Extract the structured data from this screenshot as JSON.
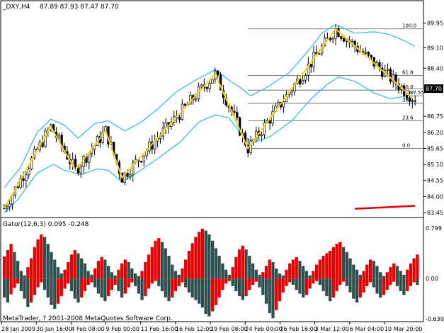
{
  "chart_header": {
    "symbol_timeframe": "_DXY,H4",
    "ohlc": "87.89 87.93 87.47 87.70"
  },
  "sub_header": {
    "indicator": "Gator(12,6,3) 0.095 -0.248"
  },
  "copyright": "MetaTrader, ? 2001-2008 MetaQuotes Software Corp.",
  "colors": {
    "background": "#ffffff",
    "candle": "#000000",
    "bollinger": "#3cbfd8",
    "zigzag": "#f2d21c",
    "fib_level": "#555555",
    "gator_up": "#e60000",
    "gator_down": "#2f4f4f",
    "signal": "#e60000",
    "price_tag_bg": "#000000",
    "price_tag_fg": "#ffffff"
  },
  "chart_data": [
    {
      "type": "candlestick",
      "title": "",
      "price_axis_labels": [
        "89.95",
        "89.10",
        "88.40",
        "87.55",
        "86.75",
        "86.20",
        "85.65",
        "85.10",
        "84.55",
        "84.00",
        "83.45"
      ],
      "current_price_label": "87.70",
      "time_axis_labels": [
        "28 Jan 2009",
        "30 Jan 16:00",
        "4 Feb 08:00",
        "9 Feb 00:00",
        "11 Feb 16:00",
        "16 Feb 12:00",
        "19 Feb 08:00",
        "24 Feb 00:00",
        "26 Feb 16:00",
        "3 Mar 12:00",
        "6 Mar 04:00",
        "10 Mar 20:00"
      ],
      "ylim": [
        83.45,
        90.4
      ],
      "zigzag": [
        {
          "bar": 0,
          "price": 83.6
        },
        {
          "bar": 17,
          "price": 86.4
        },
        {
          "bar": 26,
          "price": 84.9
        },
        {
          "bar": 37,
          "price": 86.25
        },
        {
          "bar": 43,
          "price": 84.65
        },
        {
          "bar": 77,
          "price": 88.2
        },
        {
          "bar": 89,
          "price": 85.65
        },
        {
          "bar": 121,
          "price": 89.75
        },
        {
          "bar": 149,
          "price": 87.4
        }
      ],
      "fibonacci_levels": [
        {
          "label": "100.0",
          "price": 89.75
        },
        {
          "label": "61.8",
          "price": 88.15
        },
        {
          "label": "50.0",
          "price": 87.65
        },
        {
          "label": "38.2",
          "price": 87.2
        },
        {
          "label": "23.6",
          "price": 86.6
        },
        {
          "label": "0.0",
          "price": 85.65
        }
      ],
      "fibo_price_tag": "87.55",
      "bollinger_upper": [
        [
          0,
          84.3
        ],
        [
          6,
          85.0
        ],
        [
          12,
          86.2
        ],
        [
          17,
          86.65
        ],
        [
          22,
          86.45
        ],
        [
          27,
          86.0
        ],
        [
          33,
          86.5
        ],
        [
          38,
          86.6
        ],
        [
          44,
          86.25
        ],
        [
          50,
          86.55
        ],
        [
          56,
          87.0
        ],
        [
          63,
          87.6
        ],
        [
          70,
          88.0
        ],
        [
          77,
          88.35
        ],
        [
          82,
          88.0
        ],
        [
          86,
          87.75
        ],
        [
          90,
          87.45
        ],
        [
          96,
          87.75
        ],
        [
          104,
          88.25
        ],
        [
          111,
          89.0
        ],
        [
          116,
          89.6
        ],
        [
          121,
          89.9
        ],
        [
          128,
          89.6
        ],
        [
          135,
          89.65
        ],
        [
          141,
          89.55
        ],
        [
          147,
          89.3
        ],
        [
          150,
          89.15
        ]
      ],
      "bollinger_lower": [
        [
          0,
          83.45
        ],
        [
          5,
          83.9
        ],
        [
          12,
          84.8
        ],
        [
          18,
          85.1
        ],
        [
          22,
          84.9
        ],
        [
          28,
          84.75
        ],
        [
          34,
          84.95
        ],
        [
          38,
          84.9
        ],
        [
          43,
          84.5
        ],
        [
          49,
          84.85
        ],
        [
          56,
          85.3
        ],
        [
          64,
          85.85
        ],
        [
          71,
          86.55
        ],
        [
          77,
          86.8
        ],
        [
          82,
          86.7
        ],
        [
          87,
          86.1
        ],
        [
          91,
          85.85
        ],
        [
          97,
          86.05
        ],
        [
          105,
          86.6
        ],
        [
          112,
          87.35
        ],
        [
          118,
          87.85
        ],
        [
          122,
          88.1
        ],
        [
          128,
          87.95
        ],
        [
          135,
          87.55
        ],
        [
          141,
          87.35
        ],
        [
          147,
          87.45
        ],
        [
          150,
          87.6
        ]
      ],
      "gator_upper": [
        0.35,
        0.45,
        0.55,
        0.42,
        0.28,
        0.12,
        0.05,
        0.18,
        0.32,
        0.5,
        0.62,
        0.7,
        0.66,
        0.55,
        0.42,
        0.3,
        0.18,
        0.08,
        0.14,
        0.26,
        0.38,
        0.45,
        0.4,
        0.32,
        0.24,
        0.12,
        0.06,
        0.16,
        0.28,
        0.34,
        0.3,
        0.2,
        0.1,
        0.05,
        0.14,
        0.24,
        0.3,
        0.26,
        0.16,
        0.08,
        0.04,
        0.12,
        0.26,
        0.38,
        0.5,
        0.6,
        0.64,
        0.58,
        0.48,
        0.36,
        0.22,
        0.12,
        0.06,
        0.16,
        0.3,
        0.44,
        0.56,
        0.66,
        0.74,
        0.79,
        0.76,
        0.7,
        0.6,
        0.48,
        0.36,
        0.24,
        0.14,
        0.06,
        0.18,
        0.34,
        0.46,
        0.52,
        0.46,
        0.36,
        0.24,
        0.14,
        0.06,
        0.1,
        0.2,
        0.3,
        0.26,
        0.16,
        0.08,
        0.05,
        0.14,
        0.24,
        0.3,
        0.34,
        0.28,
        0.2,
        0.12,
        0.05,
        0.12,
        0.22,
        0.3,
        0.36,
        0.4,
        0.44,
        0.5,
        0.55,
        0.58,
        0.5,
        0.42,
        0.32,
        0.22,
        0.14,
        0.06,
        0.12,
        0.22,
        0.3,
        0.28,
        0.2,
        0.1,
        0.04,
        0.1,
        0.18,
        0.24,
        0.2,
        0.12,
        0.06,
        0.14,
        0.24,
        0.32,
        0.38
      ],
      "gator_lower": [
        -0.3,
        -0.38,
        -0.25,
        -0.15,
        -0.08,
        -0.2,
        -0.32,
        -0.45,
        -0.38,
        -0.26,
        -0.14,
        -0.06,
        -0.18,
        -0.3,
        -0.42,
        -0.48,
        -0.4,
        -0.28,
        -0.16,
        -0.08,
        -0.2,
        -0.32,
        -0.38,
        -0.3,
        -0.2,
        -0.1,
        -0.06,
        -0.14,
        -0.24,
        -0.3,
        -0.36,
        -0.28,
        -0.18,
        -0.1,
        -0.2,
        -0.3,
        -0.24,
        -0.14,
        -0.06,
        -0.12,
        -0.24,
        -0.34,
        -0.28,
        -0.16,
        -0.08,
        -0.04,
        -0.12,
        -0.2,
        -0.3,
        -0.36,
        -0.3,
        -0.2,
        -0.12,
        -0.06,
        -0.14,
        -0.22,
        -0.3,
        -0.34,
        -0.4,
        -0.46,
        -0.56,
        -0.6,
        -0.52,
        -0.42,
        -0.3,
        -0.18,
        -0.08,
        -0.04,
        -0.12,
        -0.2,
        -0.28,
        -0.34,
        -0.28,
        -0.18,
        -0.1,
        -0.05,
        -0.14,
        -0.26,
        -0.4,
        -0.55,
        -0.63,
        -0.5,
        -0.36,
        -0.22,
        -0.12,
        -0.06,
        -0.1,
        -0.18,
        -0.24,
        -0.3,
        -0.26,
        -0.16,
        -0.08,
        -0.04,
        -0.1,
        -0.2,
        -0.28,
        -0.36,
        -0.3,
        -0.2,
        -0.1,
        -0.05,
        -0.12,
        -0.22,
        -0.32,
        -0.38,
        -0.3,
        -0.22,
        -0.12,
        -0.06,
        -0.14,
        -0.24,
        -0.3,
        -0.26,
        -0.18,
        -0.1,
        -0.05,
        -0.12,
        -0.2,
        -0.26,
        -0.2,
        -0.12,
        -0.06,
        -0.1
      ],
      "gator_axis_labels": [
        "0.799",
        "0.00",
        "-0.639"
      ],
      "gator_ylim": [
        -0.639,
        0.799
      ]
    }
  ]
}
